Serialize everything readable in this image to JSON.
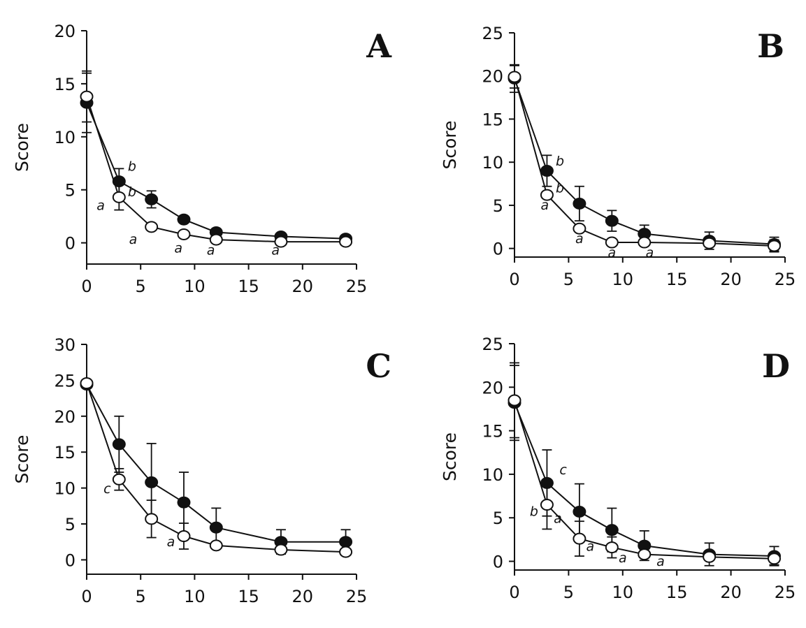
{
  "chart_data": [
    {
      "type": "line",
      "panel_label": "A",
      "ylabel": "Score",
      "xlabel": "",
      "xlim": [
        0,
        25
      ],
      "ylim": [
        -2,
        20
      ],
      "xticks": [
        "0",
        "5",
        "10",
        "15",
        "20",
        "25"
      ],
      "yticks": [
        "0",
        "5",
        "10",
        "15",
        "20"
      ],
      "series": [
        {
          "name": "filled",
          "marker": "filled-circle",
          "x": [
            0,
            3,
            6,
            9,
            12,
            18,
            24
          ],
          "y": [
            13.2,
            5.8,
            4.1,
            2.2,
            1.0,
            0.6,
            0.4
          ],
          "err": [
            2.8,
            1.2,
            0.8,
            0,
            0,
            0,
            0
          ]
        },
        {
          "name": "open",
          "marker": "open-circle",
          "x": [
            0,
            3,
            6,
            9,
            12,
            18,
            24
          ],
          "y": [
            13.8,
            4.3,
            1.5,
            0.8,
            0.3,
            0.1,
            0.1
          ],
          "err": [
            2.4,
            1.2,
            0,
            0,
            0,
            0,
            0
          ]
        }
      ],
      "annotations": [
        {
          "text": "b",
          "x": 4.2,
          "y": 6.8
        },
        {
          "text": "b",
          "x": 4.2,
          "y": 4.4
        },
        {
          "text": "a",
          "x": 1.3,
          "y": 3.1
        },
        {
          "text": "a",
          "x": 4.3,
          "y": -0.1
        },
        {
          "text": "a",
          "x": 8.5,
          "y": -0.9
        },
        {
          "text": "a",
          "x": 11.5,
          "y": -1.1
        },
        {
          "text": "a",
          "x": 17.5,
          "y": -1.1
        }
      ]
    },
    {
      "type": "line",
      "panel_label": "B",
      "ylabel": "Score",
      "xlabel": "",
      "xlim": [
        0,
        25
      ],
      "ylim": [
        -1,
        25
      ],
      "xticks": [
        "0",
        "5",
        "10",
        "15",
        "20",
        "25"
      ],
      "yticks": [
        "0",
        "5",
        "10",
        "15",
        "20",
        "25"
      ],
      "series": [
        {
          "name": "filled",
          "marker": "filled-circle",
          "x": [
            0,
            3,
            6,
            9,
            12,
            18,
            24
          ],
          "y": [
            19.7,
            9.0,
            5.2,
            3.2,
            1.7,
            0.9,
            0.5
          ],
          "err": [
            1.6,
            1.8,
            2.0,
            1.2,
            1.0,
            1.0,
            0.8
          ]
        },
        {
          "name": "open",
          "marker": "open-circle",
          "x": [
            0,
            3,
            6,
            9,
            12,
            18,
            24
          ],
          "y": [
            19.9,
            6.2,
            2.3,
            0.7,
            0.7,
            0.6,
            0.3
          ],
          "err": [
            1.3,
            0,
            0,
            0,
            0,
            0,
            0.7
          ]
        }
      ],
      "annotations": [
        {
          "text": "b",
          "x": 4.2,
          "y": 9.6
        },
        {
          "text": "b",
          "x": 4.2,
          "y": 6.5
        },
        {
          "text": "a",
          "x": 2.8,
          "y": 4.5
        },
        {
          "text": "a",
          "x": 6.0,
          "y": 0.6
        },
        {
          "text": "a",
          "x": 9.0,
          "y": -1.0
        },
        {
          "text": "a",
          "x": 12.5,
          "y": -1.0
        }
      ]
    },
    {
      "type": "line",
      "panel_label": "C",
      "ylabel": "Score",
      "xlabel": "",
      "xlim": [
        0,
        25
      ],
      "ylim": [
        -2,
        30
      ],
      "xticks": [
        "0",
        "5",
        "10",
        "15",
        "20",
        "25"
      ],
      "yticks": [
        "0",
        "5",
        "10",
        "15",
        "20",
        "25",
        "30"
      ],
      "series": [
        {
          "name": "filled",
          "marker": "filled-circle",
          "x": [
            0,
            3,
            6,
            9,
            12,
            18,
            24
          ],
          "y": [
            24.4,
            16.1,
            10.8,
            8.0,
            4.5,
            2.5,
            2.5
          ],
          "err": [
            0,
            3.9,
            5.4,
            4.2,
            2.7,
            1.7,
            1.7
          ]
        },
        {
          "name": "open",
          "marker": "open-circle",
          "x": [
            0,
            3,
            6,
            9,
            12,
            18,
            24
          ],
          "y": [
            24.6,
            11.2,
            5.7,
            3.3,
            2.0,
            1.4,
            1.1
          ],
          "err": [
            0,
            1.5,
            2.6,
            1.8,
            0,
            0,
            0
          ]
        }
      ],
      "annotations": [
        {
          "text": "c",
          "x": 1.9,
          "y": 9.3
        },
        {
          "text": "a",
          "x": 7.8,
          "y": 1.9
        }
      ]
    },
    {
      "type": "line",
      "panel_label": "D",
      "ylabel": "Score",
      "xlabel": "",
      "xlim": [
        0,
        25
      ],
      "ylim": [
        -1,
        25
      ],
      "xticks": [
        "0",
        "5",
        "10",
        "15",
        "20",
        "25"
      ],
      "yticks": [
        "0",
        "5",
        "10",
        "15",
        "20",
        "25"
      ],
      "series": [
        {
          "name": "filled",
          "marker": "filled-circle",
          "x": [
            0,
            3,
            6,
            9,
            12,
            18,
            24
          ],
          "y": [
            18.2,
            9.0,
            5.7,
            3.6,
            1.8,
            0.8,
            0.6
          ],
          "err": [
            4.3,
            3.8,
            3.2,
            2.5,
            1.7,
            1.3,
            1.1
          ]
        },
        {
          "name": "open",
          "marker": "open-circle",
          "x": [
            0,
            3,
            6,
            9,
            12,
            18,
            24
          ],
          "y": [
            18.5,
            6.5,
            2.6,
            1.6,
            0.8,
            0.5,
            0.3
          ],
          "err": [
            4.3,
            2.8,
            2.0,
            1.2,
            0,
            0,
            0.7
          ]
        }
      ],
      "annotations": [
        {
          "text": "c",
          "x": 4.5,
          "y": 10.0
        },
        {
          "text": "b",
          "x": 1.8,
          "y": 5.2
        },
        {
          "text": "a",
          "x": 4.0,
          "y": 4.4
        },
        {
          "text": "a",
          "x": 7.0,
          "y": 1.2
        },
        {
          "text": "a",
          "x": 10.0,
          "y": -0.1
        },
        {
          "text": "a",
          "x": 13.5,
          "y": -0.5
        }
      ]
    }
  ]
}
